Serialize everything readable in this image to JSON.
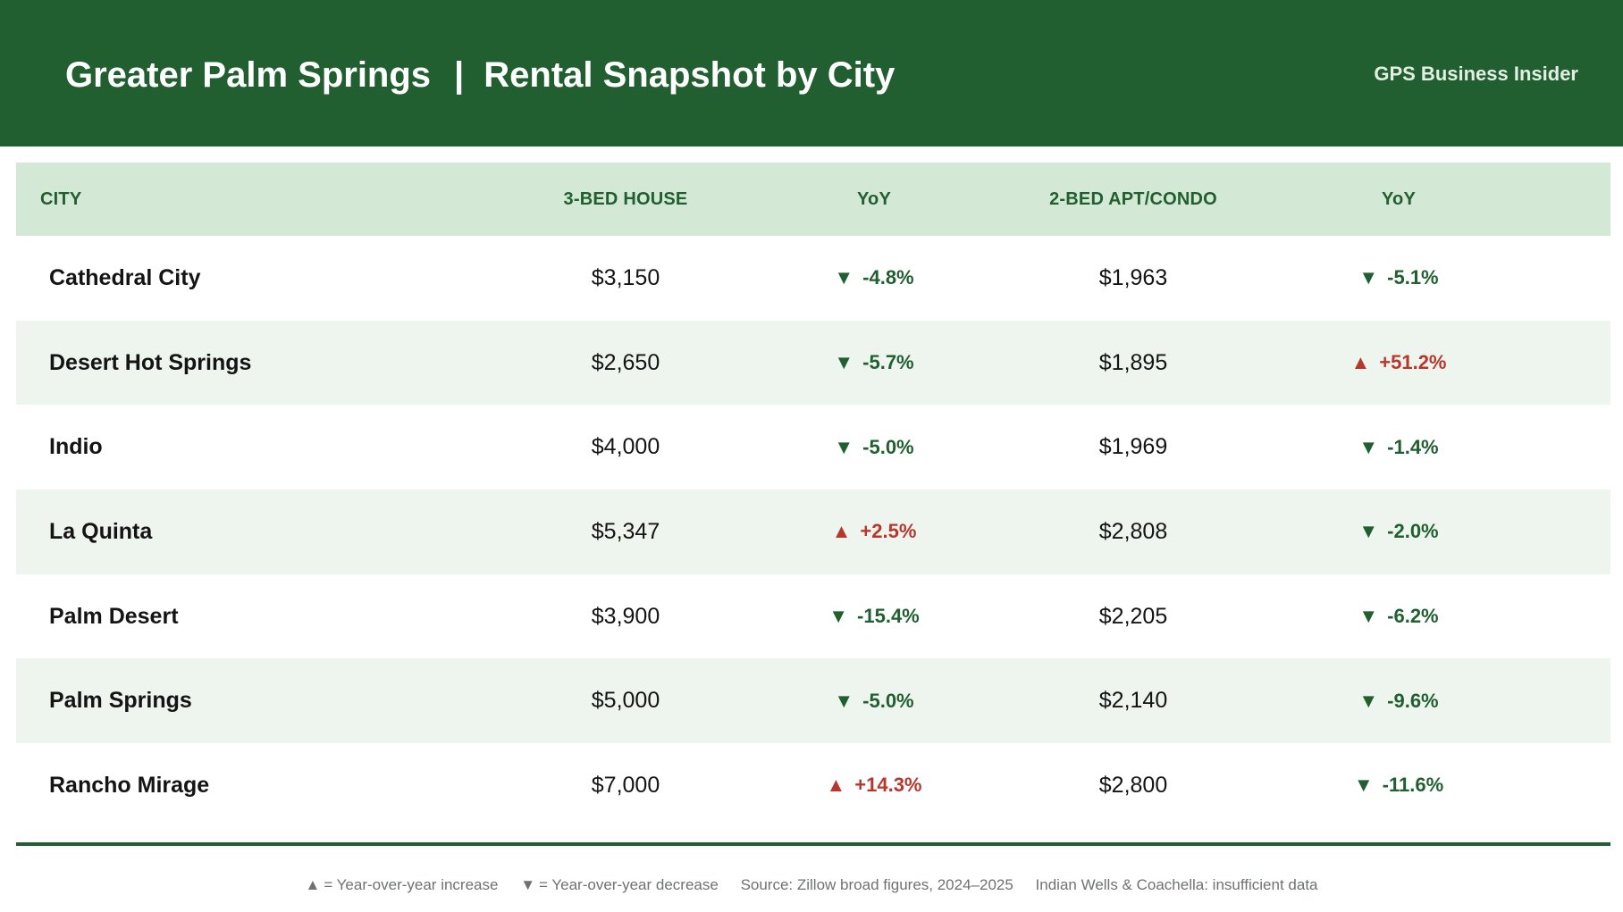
{
  "colors": {
    "brand": "#215f30",
    "header_band": "#d3e9d6",
    "alt_row": "#eef4ee",
    "decrease": "#215f30",
    "increase": "#b8372c"
  },
  "header": {
    "title_left": "Greater Palm Springs",
    "separator": "|",
    "title_right": "Rental Snapshot by City",
    "source_brand": "GPS Business Insider"
  },
  "table": {
    "columns": [
      "CITY",
      "3-BED HOUSE",
      "YoY",
      "2-BED APT/CONDO",
      "YoY"
    ],
    "rows": [
      {
        "city": "Cathedral City",
        "house": "$3,150",
        "house_yoy": {
          "text": "-4.8%",
          "dir": "down"
        },
        "apt": "$1,963",
        "apt_yoy": {
          "text": "-5.1%",
          "dir": "down"
        }
      },
      {
        "city": "Desert Hot Springs",
        "house": "$2,650",
        "house_yoy": {
          "text": "-5.7%",
          "dir": "down"
        },
        "apt": "$1,895",
        "apt_yoy": {
          "text": "+51.2%",
          "dir": "up"
        }
      },
      {
        "city": "Indio",
        "house": "$4,000",
        "house_yoy": {
          "text": "-5.0%",
          "dir": "down"
        },
        "apt": "$1,969",
        "apt_yoy": {
          "text": "-1.4%",
          "dir": "down"
        }
      },
      {
        "city": "La Quinta",
        "house": "$5,347",
        "house_yoy": {
          "text": "+2.5%",
          "dir": "up"
        },
        "apt": "$2,808",
        "apt_yoy": {
          "text": "-2.0%",
          "dir": "down"
        }
      },
      {
        "city": "Palm Desert",
        "house": "$3,900",
        "house_yoy": {
          "text": "-15.4%",
          "dir": "down"
        },
        "apt": "$2,205",
        "apt_yoy": {
          "text": "-6.2%",
          "dir": "down"
        }
      },
      {
        "city": "Palm Springs",
        "house": "$5,000",
        "house_yoy": {
          "text": "-5.0%",
          "dir": "down"
        },
        "apt": "$2,140",
        "apt_yoy": {
          "text": "-9.6%",
          "dir": "down"
        }
      },
      {
        "city": "Rancho Mirage",
        "house": "$7,000",
        "house_yoy": {
          "text": "+14.3%",
          "dir": "up"
        },
        "apt": "$2,800",
        "apt_yoy": {
          "text": "-11.6%",
          "dir": "down"
        }
      }
    ]
  },
  "icons": {
    "up": "▲",
    "down": "▼"
  },
  "footer": {
    "increase_label": "= Year-over-year increase",
    "decrease_label": "= Year-over-year decrease",
    "source": "Source: Zillow broad figures, 2024–2025",
    "note": "Indian Wells & Coachella: insufficient data"
  }
}
